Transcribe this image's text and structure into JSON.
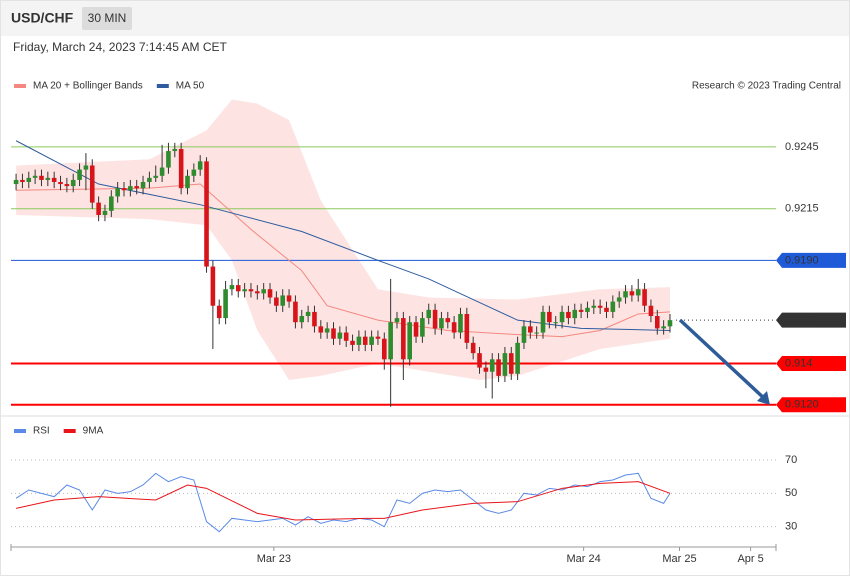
{
  "header": {
    "symbol": "USD/CHF",
    "interval": "30 MIN",
    "datetime": "Friday, March 24, 2023 7:14:45 AM CET",
    "credit": "Research © 2023 Trading Central"
  },
  "chart_data": [
    {
      "type": "candlestick",
      "xlim": [
        -0.8,
        119.7
      ],
      "ylim": [
        0.9117,
        0.9268
      ],
      "xticks": [
        {
          "value": 40.6,
          "label": "Mar 23"
        },
        {
          "value": 89.4,
          "label": "Mar 24"
        },
        {
          "value": 104.5,
          "label": "Mar 25"
        },
        {
          "value": 115.7,
          "label": "Apr 5"
        }
      ],
      "candles": {
        "up_color": "#2e8b2e",
        "down_color": "#d7141a",
        "open": [
          0.9227,
          0.9229,
          0.9228,
          0.923,
          0.9231,
          0.9229,
          0.923,
          0.9228,
          0.9227,
          0.9226,
          0.9229,
          0.9234,
          0.9236,
          0.9218,
          0.9212,
          0.9214,
          0.9221,
          0.9225,
          0.9224,
          0.9226,
          0.9225,
          0.9228,
          0.923,
          0.9231,
          0.9235,
          0.9243,
          0.9244,
          0.9225,
          0.9231,
          0.9234,
          0.9238,
          0.9187,
          0.9168,
          0.9162,
          0.9176,
          0.9178,
          0.9175,
          0.9176,
          0.9175,
          0.9174,
          0.9176,
          0.9172,
          0.9168,
          0.9173,
          0.917,
          0.916,
          0.9163,
          0.9165,
          0.9158,
          0.9155,
          0.9157,
          0.9152,
          0.9155,
          0.9151,
          0.9149,
          0.9153,
          0.9149,
          0.9153,
          0.9152,
          0.9142,
          0.916,
          0.9162,
          0.9142,
          0.916,
          0.9153,
          0.9162,
          0.9166,
          0.9157,
          0.9162,
          0.916,
          0.9155,
          0.9164,
          0.915,
          0.9145,
          0.9138,
          0.9136,
          0.9142,
          0.9134,
          0.9145,
          0.9135,
          0.915,
          0.9158,
          0.9155,
          0.9155,
          0.9165,
          0.916,
          0.916,
          0.9165,
          0.9162,
          0.9166,
          0.9165,
          0.9167,
          0.9168,
          0.9167,
          0.9165,
          0.917,
          0.9172,
          0.9175,
          0.9173,
          0.9176,
          0.9168,
          0.9163,
          0.9157,
          0.9158
        ],
        "high": [
          0.9232,
          0.9232,
          0.9233,
          0.9234,
          0.9234,
          0.9233,
          0.9233,
          0.9231,
          0.923,
          0.9232,
          0.9237,
          0.9242,
          0.9239,
          0.9221,
          0.9217,
          0.9224,
          0.9228,
          0.9228,
          0.9229,
          0.9229,
          0.9231,
          0.9233,
          0.9236,
          0.9246,
          0.9247,
          0.9247,
          0.9247,
          0.9234,
          0.9237,
          0.9241,
          0.924,
          0.919,
          0.9171,
          0.918,
          0.9181,
          0.9181,
          0.9179,
          0.9179,
          0.9178,
          0.9179,
          0.9179,
          0.9175,
          0.9176,
          0.9176,
          0.9173,
          0.9166,
          0.9168,
          0.9168,
          0.9161,
          0.916,
          0.916,
          0.9158,
          0.9158,
          0.9154,
          0.9156,
          0.9156,
          0.9156,
          0.9156,
          0.9155,
          0.9181,
          0.9165,
          0.9165,
          0.9163,
          0.9163,
          0.9165,
          0.9169,
          0.9169,
          0.9165,
          0.9165,
          0.9163,
          0.9167,
          0.9167,
          0.9153,
          0.9148,
          0.9141,
          0.9145,
          0.9145,
          0.9148,
          0.9148,
          0.9153,
          0.9161,
          0.9161,
          0.9158,
          0.9168,
          0.9168,
          0.9163,
          0.9168,
          0.9168,
          0.9169,
          0.9169,
          0.917,
          0.9171,
          0.9171,
          0.917,
          0.9173,
          0.9175,
          0.9178,
          0.9178,
          0.9181,
          0.9179,
          0.9171,
          0.9166,
          0.9161,
          0.9164
        ],
        "low": [
          0.9224,
          0.9225,
          0.9225,
          0.9227,
          0.9226,
          0.9226,
          0.9225,
          0.9224,
          0.9223,
          0.9223,
          0.9226,
          0.9224,
          0.9215,
          0.9209,
          0.9209,
          0.9211,
          0.9218,
          0.9221,
          0.9221,
          0.9222,
          0.9222,
          0.9225,
          0.9228,
          0.9228,
          0.9232,
          0.924,
          0.9222,
          0.9222,
          0.9228,
          0.9231,
          0.9184,
          0.9147,
          0.9159,
          0.9159,
          0.9173,
          0.9172,
          0.9172,
          0.9172,
          0.9171,
          0.9171,
          0.9169,
          0.9165,
          0.9165,
          0.9167,
          0.9157,
          0.9157,
          0.916,
          0.9155,
          0.9152,
          0.9152,
          0.9149,
          0.9149,
          0.9148,
          0.9146,
          0.9146,
          0.9146,
          0.9146,
          0.9149,
          0.9137,
          0.9119,
          0.9157,
          0.9132,
          0.9139,
          0.915,
          0.915,
          0.9159,
          0.9154,
          0.9154,
          0.9157,
          0.9152,
          0.9152,
          0.9147,
          0.9142,
          0.9135,
          0.9128,
          0.9123,
          0.9131,
          0.9131,
          0.9132,
          0.9132,
          0.9147,
          0.9152,
          0.9152,
          0.9152,
          0.9157,
          0.9157,
          0.9157,
          0.9159,
          0.9159,
          0.9162,
          0.9162,
          0.9164,
          0.9164,
          0.9162,
          0.9162,
          0.9167,
          0.9169,
          0.917,
          0.917,
          0.9165,
          0.916,
          0.9154,
          0.9154,
          0.9155
        ],
        "close": [
          0.9229,
          0.9228,
          0.923,
          0.9231,
          0.9229,
          0.923,
          0.9228,
          0.9227,
          0.9226,
          0.9229,
          0.9234,
          0.9236,
          0.9218,
          0.9212,
          0.9214,
          0.9221,
          0.9225,
          0.9224,
          0.9226,
          0.9225,
          0.9228,
          0.923,
          0.9231,
          0.9235,
          0.9243,
          0.9244,
          0.9225,
          0.9231,
          0.9234,
          0.9238,
          0.9187,
          0.9168,
          0.9162,
          0.9176,
          0.9178,
          0.9175,
          0.9176,
          0.9175,
          0.9174,
          0.9176,
          0.9172,
          0.9168,
          0.9173,
          0.917,
          0.916,
          0.9163,
          0.9165,
          0.9158,
          0.9155,
          0.9157,
          0.9152,
          0.9155,
          0.9151,
          0.9149,
          0.9153,
          0.9149,
          0.9153,
          0.9152,
          0.9142,
          0.916,
          0.9162,
          0.9142,
          0.916,
          0.9153,
          0.9162,
          0.9166,
          0.9157,
          0.9162,
          0.916,
          0.9155,
          0.9164,
          0.915,
          0.9145,
          0.9138,
          0.9136,
          0.9142,
          0.9134,
          0.9145,
          0.9135,
          0.915,
          0.9158,
          0.9155,
          0.9155,
          0.9165,
          0.916,
          0.916,
          0.9165,
          0.9162,
          0.9166,
          0.9165,
          0.9167,
          0.9168,
          0.9167,
          0.9165,
          0.917,
          0.9172,
          0.9175,
          0.9173,
          0.9176,
          0.9168,
          0.9163,
          0.9157,
          0.9158,
          0.9161
        ]
      },
      "series": [
        {
          "name": "MA 20 + Bollinger Bands",
          "color": "#f4877f",
          "band_color": "#fde4e3",
          "x": [
            0,
            21,
            29,
            37,
            45,
            49,
            57,
            68,
            79,
            86,
            92,
            98,
            103
          ],
          "values": [
            0.9224,
            0.9225,
            0.9227,
            0.9205,
            0.9185,
            0.9168,
            0.9161,
            0.9156,
            0.9154,
            0.9153,
            0.9156,
            0.9164,
            0.9165
          ],
          "upper": {
            "x": [
              0,
              21,
              30,
              34,
              38,
              43,
              48,
              53,
              57,
              65,
              79,
              92,
              103
            ],
            "values": [
              0.9236,
              0.9239,
              0.9253,
              0.9268,
              0.9266,
              0.9258,
              0.9219,
              0.9195,
              0.9176,
              0.9172,
              0.9171,
              0.9176,
              0.9177
            ]
          },
          "lower": {
            "x": [
              0,
              21,
              30,
              34,
              38,
              43,
              48,
              57,
              73,
              79,
              92,
              103
            ],
            "values": [
              0.9212,
              0.921,
              0.9207,
              0.919,
              0.9156,
              0.9132,
              0.9134,
              0.914,
              0.9132,
              0.9134,
              0.9147,
              0.9152
            ]
          }
        },
        {
          "name": "MA 50",
          "color": "#2e5c9e",
          "x": [
            0,
            13,
            29,
            45,
            57,
            65,
            72,
            79,
            89,
            103
          ],
          "values": [
            0.9248,
            0.9227,
            0.9217,
            0.9204,
            0.919,
            0.9181,
            0.9171,
            0.9161,
            0.9157,
            0.9156
          ]
        }
      ],
      "levels": [
        {
          "value": 0.9245,
          "color": "#8cc95a",
          "tag": false
        },
        {
          "value": 0.9215,
          "color": "#8cc95a",
          "tag": false
        },
        {
          "value": {
            "value": 0.919,
            "label": "0.9190"
          },
          "color": "#1f5ad8",
          "tag": true
        },
        {
          "value": 0.9161,
          "color": "#333333",
          "tag": true,
          "dotted": true
        },
        {
          "value": 0.914,
          "color": "#ff0000",
          "tag": true
        },
        {
          "value": {
            "value": 0.912,
            "label": "0.9120"
          },
          "color": "#ff0000",
          "tag": true
        }
      ]
    },
    {
      "type": "line",
      "xlim": [
        -0.8,
        119.7
      ],
      "ylim": [
        22,
        79
      ],
      "yticks": [
        70,
        50,
        30
      ],
      "series": [
        {
          "name": "RSI",
          "color": "#5b8ae6",
          "x": [
            0,
            2,
            4,
            6,
            8,
            10,
            12,
            14,
            16,
            18,
            20,
            22,
            24,
            26,
            28,
            30,
            32,
            34,
            36,
            38,
            40,
            42,
            44,
            46,
            48,
            50,
            52,
            54,
            56,
            58,
            60,
            62,
            64,
            66,
            68,
            70,
            72,
            74,
            76,
            78,
            80,
            82,
            84,
            86,
            88,
            90,
            92,
            94,
            96,
            98,
            100,
            102,
            103
          ],
          "values": [
            47,
            52,
            50,
            48,
            55,
            52,
            40,
            52,
            50,
            51,
            55,
            62,
            57,
            60,
            58,
            33,
            27,
            35,
            34,
            33,
            34,
            35,
            31,
            36,
            32,
            34,
            33,
            35,
            34,
            30,
            46,
            44,
            50,
            52,
            51,
            52,
            46,
            40,
            38,
            40,
            50,
            49,
            53,
            52,
            55,
            54,
            57,
            58,
            61,
            62,
            47,
            44,
            50
          ]
        },
        {
          "name": "9MA",
          "color": "#e8141a",
          "x": [
            0,
            6,
            13,
            22,
            27,
            30,
            38,
            44,
            55,
            58,
            64,
            72,
            79,
            86,
            92,
            98,
            103
          ],
          "values": [
            41,
            46,
            48,
            46,
            55,
            53,
            38,
            34,
            35,
            35,
            40,
            44,
            45,
            53,
            56,
            57,
            50
          ]
        }
      ]
    }
  ]
}
